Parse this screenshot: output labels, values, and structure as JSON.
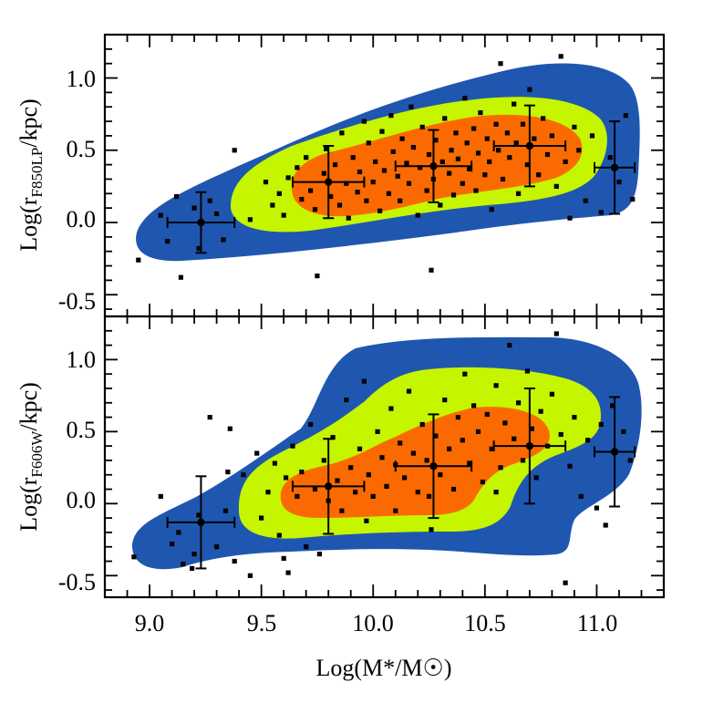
{
  "chart_data": [
    {
      "type": "scatter",
      "panel": "top",
      "xlabel": "Log(M*/M☉)",
      "ylabel": "Log(rF850LP/kpc)",
      "ylabel_main": "Log(r",
      "ylabel_sub": "F850LP",
      "ylabel_tail": "/kpc)",
      "xlim": [
        8.8,
        11.3
      ],
      "ylim": [
        -0.65,
        1.3
      ],
      "xticks": [
        "9.0",
        "9.5",
        "10.0",
        "10.5",
        "11.0"
      ],
      "yticks": [
        "-0.5",
        "0.0",
        "0.5",
        "1.0"
      ],
      "contour_colors": [
        "#1f57b0",
        "#c6f500",
        "#fb6a00"
      ],
      "binned_points": [
        {
          "x": 9.23,
          "y": 0.0,
          "xerr": 0.15,
          "yerr": 0.21
        },
        {
          "x": 9.8,
          "y": 0.28,
          "xerr": 0.16,
          "yerr": 0.25
        },
        {
          "x": 10.27,
          "y": 0.39,
          "xerr": 0.17,
          "yerr": 0.25
        },
        {
          "x": 10.7,
          "y": 0.53,
          "xerr": 0.16,
          "yerr": 0.28
        },
        {
          "x": 11.08,
          "y": 0.38,
          "xerr": 0.09,
          "yerr": 0.32
        }
      ],
      "points": [
        [
          8.95,
          -0.26
        ],
        [
          9.05,
          0.05
        ],
        [
          9.08,
          -0.13
        ],
        [
          9.12,
          0.18
        ],
        [
          9.14,
          -0.38
        ],
        [
          9.2,
          0.1
        ],
        [
          9.22,
          -0.18
        ],
        [
          9.3,
          0.06
        ],
        [
          9.33,
          -0.12
        ],
        [
          9.27,
          0.15
        ],
        [
          9.38,
          0.5
        ],
        [
          9.45,
          0.02
        ],
        [
          9.52,
          0.28
        ],
        [
          9.55,
          0.12
        ],
        [
          9.58,
          0.2
        ],
        [
          9.62,
          0.31
        ],
        [
          9.6,
          0.05
        ],
        [
          9.66,
          0.38
        ],
        [
          9.68,
          0.16
        ],
        [
          9.7,
          0.45
        ],
        [
          9.72,
          0.22
        ],
        [
          9.74,
          0.09
        ],
        [
          9.75,
          -0.37
        ],
        [
          9.78,
          0.34
        ],
        [
          9.79,
          0.51
        ],
        [
          9.81,
          0.18
        ],
        [
          9.83,
          0.4
        ],
        [
          9.85,
          0.12
        ],
        [
          9.86,
          0.62
        ],
        [
          9.88,
          0.27
        ],
        [
          9.89,
          0.03
        ],
        [
          9.91,
          0.45
        ],
        [
          9.93,
          0.21
        ],
        [
          9.94,
          0.35
        ],
        [
          9.96,
          0.7
        ],
        [
          9.97,
          0.15
        ],
        [
          9.98,
          0.55
        ],
        [
          10.0,
          0.28
        ],
        [
          10.01,
          0.42
        ],
        [
          10.03,
          0.08
        ],
        [
          10.04,
          0.63
        ],
        [
          10.05,
          0.36
        ],
        [
          10.07,
          0.2
        ],
        [
          10.08,
          0.74
        ],
        [
          10.09,
          0.49
        ],
        [
          10.11,
          0.32
        ],
        [
          10.12,
          0.15
        ],
        [
          10.13,
          0.58
        ],
        [
          10.15,
          0.41
        ],
        [
          10.16,
          0.27
        ],
        [
          10.17,
          0.8
        ],
        [
          10.18,
          0.52
        ],
        [
          10.2,
          0.05
        ],
        [
          10.21,
          0.38
        ],
        [
          10.22,
          0.66
        ],
        [
          10.24,
          0.22
        ],
        [
          10.25,
          0.47
        ],
        [
          10.26,
          -0.33
        ],
        [
          10.27,
          0.3
        ],
        [
          10.28,
          0.57
        ],
        [
          10.3,
          0.12
        ],
        [
          10.31,
          0.42
        ],
        [
          10.32,
          0.72
        ],
        [
          10.34,
          0.34
        ],
        [
          10.35,
          0.5
        ],
        [
          10.36,
          0.19
        ],
        [
          10.37,
          0.62
        ],
        [
          10.38,
          0.44
        ],
        [
          10.4,
          0.27
        ],
        [
          10.41,
          0.86
        ],
        [
          10.42,
          0.55
        ],
        [
          10.43,
          0.37
        ],
        [
          10.45,
          0.65
        ],
        [
          10.46,
          0.22
        ],
        [
          10.47,
          0.48
        ],
        [
          10.48,
          0.76
        ],
        [
          10.5,
          0.33
        ],
        [
          10.51,
          0.58
        ],
        [
          10.52,
          0.42
        ],
        [
          10.53,
          0.09
        ],
        [
          10.55,
          0.68
        ],
        [
          10.56,
          0.5
        ],
        [
          10.57,
          1.1
        ],
        [
          10.58,
          0.3
        ],
        [
          10.6,
          0.62
        ],
        [
          10.61,
          0.45
        ],
        [
          10.63,
          0.82
        ],
        [
          10.64,
          0.55
        ],
        [
          10.65,
          0.2
        ],
        [
          10.67,
          0.68
        ],
        [
          10.69,
          0.4
        ],
        [
          10.7,
          0.92
        ],
        [
          10.72,
          0.58
        ],
        [
          10.74,
          0.33
        ],
        [
          10.76,
          0.72
        ],
        [
          10.78,
          0.47
        ],
        [
          10.8,
          0.6
        ],
        [
          10.82,
          0.25
        ],
        [
          10.84,
          1.15
        ],
        [
          10.86,
          0.42
        ],
        [
          10.88,
          0.03
        ],
        [
          10.9,
          0.66
        ],
        [
          10.92,
          0.5
        ],
        [
          10.95,
          0.15
        ],
        [
          10.98,
          0.6
        ],
        [
          11.02,
          0.07
        ],
        [
          11.06,
          0.45
        ],
        [
          11.1,
          0.28
        ],
        [
          11.13,
          0.74
        ],
        [
          11.16,
          0.16
        ]
      ]
    },
    {
      "type": "scatter",
      "panel": "bottom",
      "xlabel": "Log(M*/M☉)",
      "ylabel": "Log(rF606W/kpc)",
      "ylabel_main": "Log(r",
      "ylabel_sub": "F606W",
      "ylabel_tail": "/kpc)",
      "xlim": [
        8.8,
        11.3
      ],
      "ylim": [
        -0.65,
        1.3
      ],
      "xticks": [
        "9.0",
        "9.5",
        "10.0",
        "10.5",
        "11.0"
      ],
      "yticks": [
        "-0.5",
        "0.0",
        "0.5",
        "1.0"
      ],
      "contour_colors": [
        "#1f57b0",
        "#c6f500",
        "#fb6a00"
      ],
      "binned_points": [
        {
          "x": 9.23,
          "y": -0.13,
          "xerr": 0.15,
          "yerr": 0.32
        },
        {
          "x": 9.8,
          "y": 0.12,
          "xerr": 0.16,
          "yerr": 0.33
        },
        {
          "x": 10.27,
          "y": 0.26,
          "xerr": 0.17,
          "yerr": 0.36
        },
        {
          "x": 10.7,
          "y": 0.4,
          "xerr": 0.16,
          "yerr": 0.4
        },
        {
          "x": 11.08,
          "y": 0.36,
          "xerr": 0.09,
          "yerr": 0.38
        }
      ],
      "points": [
        [
          8.93,
          -0.37
        ],
        [
          9.05,
          0.05
        ],
        [
          9.1,
          -0.28
        ],
        [
          9.13,
          -0.2
        ],
        [
          9.15,
          -0.42
        ],
        [
          9.2,
          -0.35
        ],
        [
          9.22,
          -0.08
        ],
        [
          9.27,
          0.6
        ],
        [
          9.3,
          -0.3
        ],
        [
          9.34,
          -0.05
        ],
        [
          9.36,
          0.52
        ],
        [
          9.38,
          -0.4
        ],
        [
          9.42,
          0.2
        ],
        [
          9.45,
          -0.5
        ],
        [
          9.48,
          0.35
        ],
        [
          9.5,
          -0.1
        ],
        [
          9.53,
          0.08
        ],
        [
          9.56,
          0.28
        ],
        [
          9.58,
          -0.22
        ],
        [
          9.61,
          0.18
        ],
        [
          9.64,
          0.4
        ],
        [
          9.66,
          0.05
        ],
        [
          9.68,
          0.22
        ],
        [
          9.7,
          -0.3
        ],
        [
          9.72,
          0.55
        ],
        [
          9.74,
          0.1
        ],
        [
          9.76,
          -0.35
        ],
        [
          9.78,
          0.3
        ],
        [
          9.8,
          0.02
        ],
        [
          9.82,
          0.46
        ],
        [
          9.84,
          0.16
        ],
        [
          9.86,
          -0.05
        ],
        [
          9.88,
          0.72
        ],
        [
          9.9,
          0.25
        ],
        [
          9.92,
          0.08
        ],
        [
          9.94,
          0.38
        ],
        [
          9.96,
          0.85
        ],
        [
          9.98,
          0.2
        ],
        [
          10.0,
          0.05
        ],
        [
          10.02,
          0.5
        ],
        [
          10.04,
          0.32
        ],
        [
          10.06,
          0.12
        ],
        [
          10.08,
          0.66
        ],
        [
          10.1,
          0.27
        ],
        [
          10.12,
          0.42
        ],
        [
          10.14,
          0.18
        ],
        [
          10.16,
          0.78
        ],
        [
          10.18,
          0.35
        ],
        [
          10.2,
          0.08
        ],
        [
          10.22,
          0.55
        ],
        [
          10.24,
          0.3
        ],
        [
          10.26,
          -0.18
        ],
        [
          10.28,
          0.47
        ],
        [
          10.3,
          0.2
        ],
        [
          10.32,
          0.72
        ],
        [
          10.34,
          0.38
        ],
        [
          10.36,
          0.1
        ],
        [
          10.38,
          0.6
        ],
        [
          10.4,
          0.44
        ],
        [
          10.41,
          0.9
        ],
        [
          10.43,
          0.28
        ],
        [
          10.45,
          0.68
        ],
        [
          10.47,
          0.5
        ],
        [
          10.49,
          0.15
        ],
        [
          10.51,
          0.62
        ],
        [
          10.53,
          0.38
        ],
        [
          10.55,
          0.82
        ],
        [
          10.57,
          0.25
        ],
        [
          10.59,
          0.56
        ],
        [
          10.61,
          1.1
        ],
        [
          10.63,
          0.45
        ],
        [
          10.65,
          0.7
        ],
        [
          10.67,
          0.3
        ],
        [
          10.69,
          0.92
        ],
        [
          10.71,
          0.52
        ],
        [
          10.73,
          0.18
        ],
        [
          10.75,
          0.64
        ],
        [
          10.78,
          0.4
        ],
        [
          10.8,
          0.76
        ],
        [
          10.82,
          1.18
        ],
        [
          10.84,
          0.48
        ],
        [
          10.86,
          -0.55
        ],
        [
          10.88,
          0.26
        ],
        [
          10.9,
          0.6
        ],
        [
          10.93,
          0.05
        ],
        [
          10.96,
          0.44
        ],
        [
          11.0,
          -0.03
        ],
        [
          11.04,
          -0.15
        ],
        [
          11.07,
          0.68
        ],
        [
          11.12,
          0.5
        ],
        [
          11.15,
          0.3
        ],
        [
          10.1,
          -0.05
        ],
        [
          10.25,
          0.05
        ],
        [
          9.6,
          -0.38
        ],
        [
          9.97,
          -0.12
        ],
        [
          10.55,
          0.08
        ],
        [
          9.35,
          0.22
        ],
        [
          9.62,
          -0.48
        ],
        [
          9.19,
          -0.45
        ],
        [
          11.02,
          0.55
        ]
      ]
    }
  ]
}
